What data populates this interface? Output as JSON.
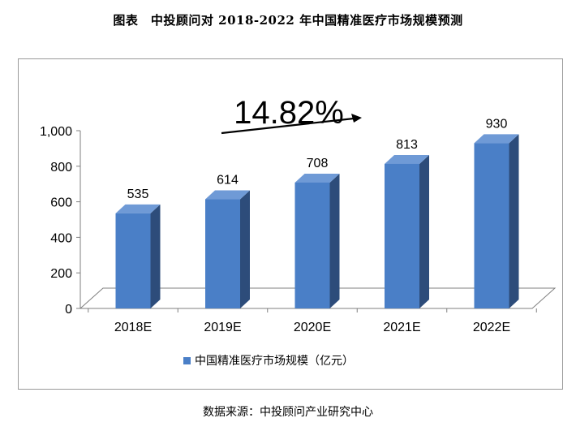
{
  "title": "图表　中投顾问对 2018-2022 年中国精准医疗市场规模预测",
  "source_note": "数据来源：中投顾问产业研究中心",
  "growth_annotation": "14.82%",
  "colors": {
    "bar_front": "#4a7fc7",
    "bar_side": "#2d4c7a",
    "bar_top": "#6f9ad6",
    "floor": "#ffffff",
    "axis": "#7f7f7f"
  },
  "chart_data": {
    "type": "bar",
    "title": "",
    "categories": [
      "2018E",
      "2019E",
      "2020E",
      "2021E",
      "2022E"
    ],
    "series": [
      {
        "name": "中国精准医疗市场规模（亿元）",
        "values": [
          535,
          614,
          708,
          813,
          930
        ]
      }
    ],
    "data_labels": [
      "535",
      "614",
      "708",
      "813",
      "930"
    ],
    "ylim": [
      0,
      1000
    ],
    "yticks": [
      "0",
      "200",
      "400",
      "600",
      "800",
      "1,000"
    ],
    "xlabel": "",
    "ylabel": "",
    "grid": false,
    "legend_position": "bottom",
    "style": "3d-column"
  }
}
